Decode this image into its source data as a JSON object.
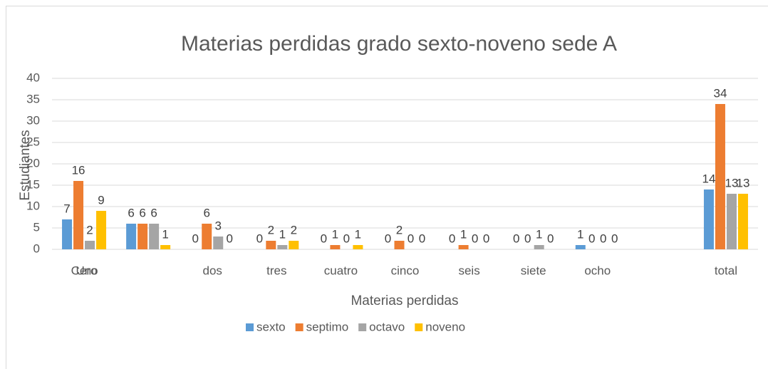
{
  "chart_data": {
    "type": "bar",
    "title": "Materias perdidas grado sexto-noveno sede A",
    "x_label": "Materias perdidas",
    "y_label": "Estudiantes",
    "categories": [
      "Cero",
      null,
      "dos",
      "tres",
      "cuatro",
      "cinco",
      "seis",
      "siete",
      "ocho",
      null,
      "total"
    ],
    "annotations": [
      "Uno"
    ],
    "series": [
      {
        "name": "sexto",
        "color": "#5b9bd5",
        "values": [
          7,
          6,
          0,
          0,
          0,
          0,
          0,
          0,
          1,
          null,
          14
        ]
      },
      {
        "name": "septimo",
        "color": "#ed7d31",
        "values": [
          16,
          6,
          6,
          2,
          1,
          2,
          1,
          0,
          0,
          null,
          34
        ]
      },
      {
        "name": "octavo",
        "color": "#a5a5a5",
        "values": [
          2,
          6,
          3,
          1,
          0,
          0,
          0,
          1,
          0,
          null,
          13
        ]
      },
      {
        "name": "noveno",
        "color": "#ffc000",
        "values": [
          9,
          1,
          0,
          2,
          1,
          0,
          0,
          0,
          0,
          null,
          13
        ]
      }
    ],
    "ylim": [
      0,
      40
    ],
    "yticks": [
      0,
      5,
      10,
      15,
      20,
      25,
      30,
      35,
      40
    ],
    "grid": true,
    "legend": "bottom"
  }
}
